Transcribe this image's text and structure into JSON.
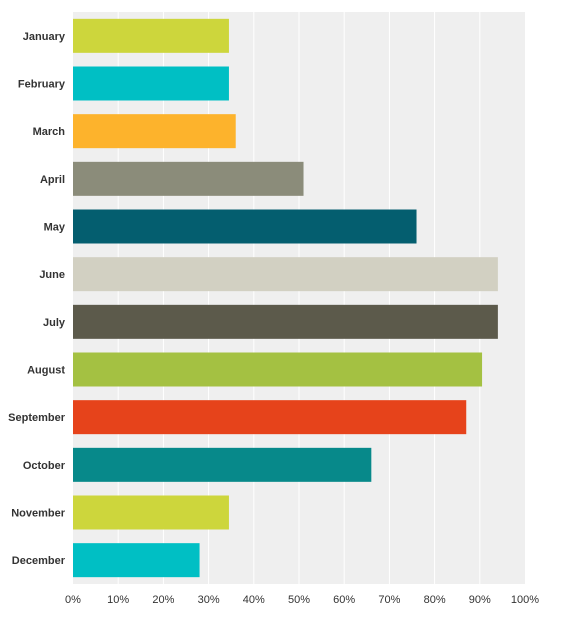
{
  "chart_data": {
    "type": "bar",
    "orientation": "horizontal",
    "categories": [
      "January",
      "February",
      "March",
      "April",
      "May",
      "June",
      "July",
      "August",
      "September",
      "October",
      "November",
      "December"
    ],
    "values": [
      34.5,
      34.5,
      36,
      51,
      76,
      94,
      94,
      90.5,
      87,
      66,
      34.5,
      28
    ],
    "colors": [
      "#cdd63c",
      "#00bfc4",
      "#fdb32c",
      "#8b8c7a",
      "#045e6f",
      "#d2d0c2",
      "#5c5a4b",
      "#a4c142",
      "#e6431b",
      "#07898a",
      "#cdd63c",
      "#00bfc4"
    ],
    "xlim": [
      0,
      100
    ],
    "x_ticks": [
      0,
      10,
      20,
      30,
      40,
      50,
      60,
      70,
      80,
      90,
      100
    ],
    "x_tick_labels": [
      "0%",
      "10%",
      "20%",
      "30%",
      "40%",
      "50%",
      "60%",
      "70%",
      "80%",
      "90%",
      "100%"
    ],
    "grid": true,
    "background": "#efefef",
    "grid_color": "#ffffff",
    "title": "",
    "xlabel": "",
    "ylabel": ""
  }
}
